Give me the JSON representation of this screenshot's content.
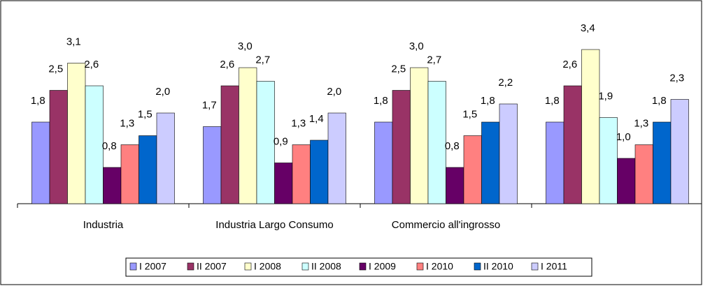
{
  "chart_data": {
    "type": "bar",
    "categories": [
      "Industria",
      "Industria Largo Consumo",
      "Commercio all'ingrosso",
      null
    ],
    "series": [
      {
        "name": "I 2007",
        "color": "#9999ff",
        "values": [
          1.8,
          1.7,
          1.8,
          1.8
        ],
        "value_labels": [
          "1,8",
          "1,7",
          "1,8",
          "1,8"
        ]
      },
      {
        "name": "II 2007",
        "color": "#993366",
        "values": [
          2.5,
          2.6,
          2.5,
          2.6
        ],
        "value_labels": [
          "2,5",
          "2,6",
          "2,5",
          "2,6"
        ]
      },
      {
        "name": "I 2008",
        "color": "#ffffcc",
        "values": [
          3.1,
          3.0,
          3.0,
          3.4
        ],
        "value_labels": [
          "3,1",
          "3,0",
          "3,0",
          "3,4"
        ]
      },
      {
        "name": "II 2008",
        "color": "#ccffff",
        "values": [
          2.6,
          2.7,
          2.7,
          1.9
        ],
        "value_labels": [
          "2,6",
          "2,7",
          "2,7",
          "1,9"
        ]
      },
      {
        "name": "I 2009",
        "color": "#660066",
        "values": [
          0.8,
          0.9,
          0.8,
          1.0
        ],
        "value_labels": [
          "0,8",
          "0,9",
          "0,8",
          "1,0"
        ]
      },
      {
        "name": "I 2010",
        "color": "#ff8080",
        "values": [
          1.3,
          1.3,
          1.5,
          1.3
        ],
        "value_labels": [
          "1,3",
          "1,3",
          "1,5",
          "1,3"
        ]
      },
      {
        "name": "II 2010",
        "color": "#0066cc",
        "values": [
          1.5,
          1.4,
          1.8,
          1.8
        ],
        "value_labels": [
          "1,5",
          "1,4",
          "1,8",
          "1,8"
        ]
      },
      {
        "name": "I 2011",
        "color": "#ccccff",
        "values": [
          2.0,
          2.0,
          2.2,
          2.3
        ],
        "value_labels": [
          "2,0",
          "2,0",
          "2,2",
          "2,3"
        ]
      }
    ],
    "ylim": [
      0,
      4
    ],
    "legend": "bottom"
  }
}
